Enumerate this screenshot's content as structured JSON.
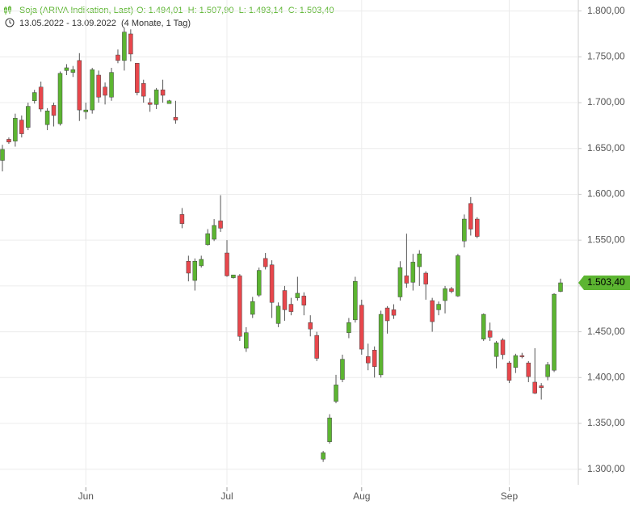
{
  "chart_data": {
    "type": "candlestick",
    "title": "Soja (ARIVA Indikation, Last)",
    "quote": "O: 1.494,01  H: 1.507,90  L: 1.493,14  C: 1.503,40",
    "range": "13.05.2022 - 13.09.2022",
    "period": "(4 Monate, 1 Tag)",
    "categories": [
      null,
      null,
      null,
      null,
      null,
      null,
      null,
      null,
      null,
      null,
      null,
      null,
      null,
      "Jun",
      null,
      null,
      null,
      null,
      null,
      null,
      null,
      null,
      null,
      null,
      null,
      null,
      null,
      null,
      null,
      null,
      null,
      null,
      null,
      null,
      null,
      "Jul",
      null,
      null,
      null,
      null,
      null,
      null,
      null,
      null,
      null,
      null,
      null,
      null,
      null,
      null,
      null,
      null,
      null,
      null,
      null,
      null,
      "Aug",
      null,
      null,
      null,
      null,
      null,
      null,
      null,
      null,
      null,
      null,
      null,
      null,
      null,
      null,
      null,
      null,
      null,
      null,
      null,
      null,
      null,
      null,
      "Sep",
      null,
      null,
      null,
      null,
      null,
      null,
      null,
      null
    ],
    "open": [
      1637,
      1660,
      1658,
      1681,
      1673,
      1702,
      1717,
      1676,
      1697,
      1677,
      1735,
      1733,
      1746,
      1690,
      1692,
      1730,
      1717,
      1706,
      1752,
      1746,
      1775,
      1743,
      1721,
      1700,
      1698,
      1714,
      1699,
      1684,
      1578,
      1527,
      1506,
      1522,
      1545,
      1551,
      1571,
      1536,
      1509,
      1511,
      1432,
      1469,
      1490,
      1530,
      1523,
      1459,
      1495,
      1480,
      1487,
      1489,
      1460,
      1446,
      1311,
      1330,
      1374,
      1398,
      1449,
      1463,
      1479,
      1423,
      1430,
      1403,
      1476,
      1474,
      1488,
      1511,
      1504,
      1521,
      1514,
      1484,
      1474,
      1484,
      1497,
      1489,
      1549,
      1590,
      1573,
      1442,
      1451,
      1423,
      1441,
      1416,
      1411,
      1424,
      1416,
      1395,
      1391,
      1401,
      1408,
      1494.01
    ],
    "high": [
      1654,
      1662,
      1688,
      1686,
      1700,
      1714,
      1723,
      1694,
      1700,
      1734,
      1742,
      1740,
      1754,
      1700,
      1738,
      1735,
      1722,
      1738,
      1758,
      1782,
      1780,
      1743,
      1725,
      1705,
      1716,
      1725,
      1703,
      1702,
      1585,
      1533,
      1530,
      1533,
      1562,
      1573,
      1599,
      1550,
      1512,
      1513,
      1455,
      1488,
      1520,
      1536,
      1528,
      1482,
      1500,
      1487,
      1510,
      1493,
      1468,
      1450,
      1320,
      1360,
      1403,
      1425,
      1465,
      1510,
      1485,
      1437,
      1434,
      1473,
      1478,
      1480,
      1527,
      1557,
      1535,
      1539,
      1516,
      1487,
      1483,
      1500,
      1499,
      1535,
      1578,
      1597,
      1575,
      1470,
      1460,
      1440,
      1443,
      1418,
      1426,
      1427,
      1418,
      1432,
      1394,
      1417,
      1492,
      1507.9
    ],
    "low": [
      1625,
      1655,
      1652,
      1662,
      1670,
      1699,
      1690,
      1670,
      1674,
      1675,
      1730,
      1728,
      1680,
      1682,
      1688,
      1700,
      1698,
      1702,
      1743,
      1735,
      1745,
      1708,
      1700,
      1690,
      1693,
      1700,
      1700,
      1677,
      1563,
      1505,
      1495,
      1520,
      1544,
      1549,
      1559,
      1510,
      1508,
      1440,
      1428,
      1465,
      1488,
      1518,
      1465,
      1455,
      1462,
      1468,
      1484,
      1468,
      1445,
      1418,
      1308,
      1328,
      1372,
      1395,
      1443,
      1460,
      1425,
      1408,
      1400,
      1400,
      1448,
      1464,
      1484,
      1498,
      1495,
      1500,
      1485,
      1450,
      1468,
      1470,
      1492,
      1488,
      1542,
      1555,
      1552,
      1440,
      1440,
      1410,
      1420,
      1394,
      1405,
      1421,
      1395,
      1382,
      1376,
      1397,
      1406,
      1493.14
    ],
    "close": [
      1649,
      1657,
      1683,
      1666,
      1696,
      1711,
      1693,
      1691,
      1686,
      1732,
      1738,
      1736,
      1692,
      1692,
      1736,
      1706,
      1708,
      1733,
      1746,
      1777,
      1753,
      1711,
      1707,
      1698,
      1714,
      1708,
      1702,
      1681,
      1568,
      1514,
      1527,
      1529,
      1557,
      1566,
      1563,
      1511,
      1512,
      1445,
      1449,
      1483,
      1517,
      1521,
      1482,
      1478,
      1474,
      1472,
      1492,
      1479,
      1453,
      1421,
      1318,
      1356,
      1392,
      1420,
      1460,
      1505,
      1431,
      1416,
      1412,
      1469,
      1462,
      1468,
      1520,
      1503,
      1526,
      1535,
      1502,
      1461,
      1480,
      1497,
      1494,
      1533,
      1573,
      1562,
      1554,
      1469,
      1444,
      1438,
      1425,
      1397,
      1424,
      1423,
      1401,
      1383,
      1389,
      1414,
      1491,
      1503.4
    ],
    "up_color": "#5cb531",
    "down_color": "#e8474c",
    "last_price": {
      "value": 1503.4,
      "label": "1.503,40"
    },
    "ylim": [
      1283,
      1812
    ],
    "yticks": [
      {
        "value": 1300,
        "label": "1.300,00"
      },
      {
        "value": 1350,
        "label": "1.350,00"
      },
      {
        "value": 1400,
        "label": "1.400,00"
      },
      {
        "value": 1450,
        "label": "1.450,00"
      },
      {
        "value": 1500,
        "label": "1.500,00"
      },
      {
        "value": 1550,
        "label": "1.550,00"
      },
      {
        "value": 1600,
        "label": "1.600,00"
      },
      {
        "value": 1650,
        "label": "1.650,00"
      },
      {
        "value": 1700,
        "label": "1.700,00"
      },
      {
        "value": 1750,
        "label": "1.750,00"
      },
      {
        "value": 1800,
        "label": "1.800,00"
      }
    ],
    "grid": true
  }
}
